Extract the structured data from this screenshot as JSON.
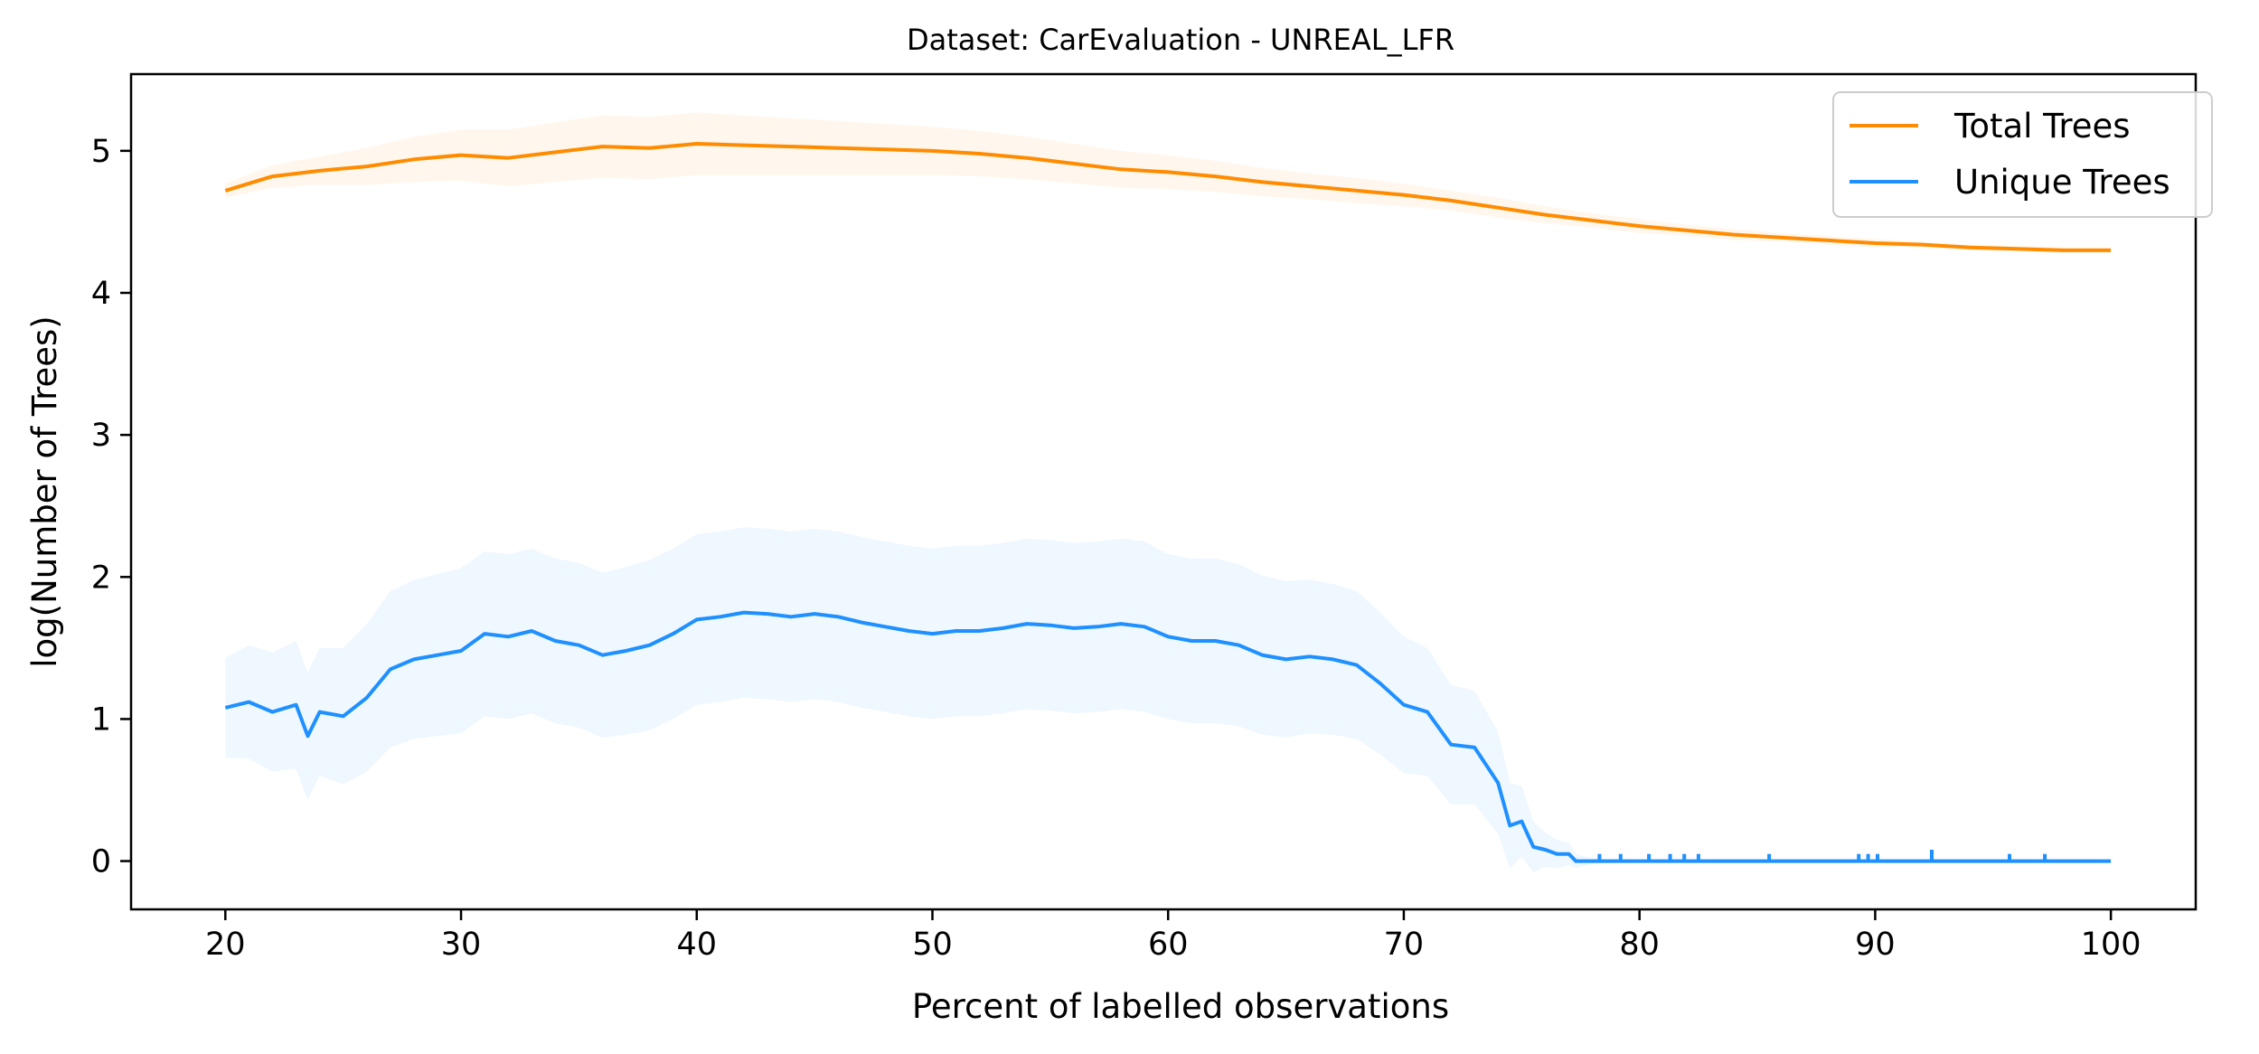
{
  "chart_data": {
    "type": "line",
    "title": "Dataset: CarEvaluation - UNREAL_LFR",
    "xlabel": "Percent of labelled observations",
    "ylabel": "log(Number of Trees)",
    "xlim": [
      16,
      103.6
    ],
    "ylim": [
      -0.34,
      5.54
    ],
    "xticks": [
      20,
      30,
      40,
      50,
      60,
      70,
      80,
      90,
      100
    ],
    "yticks": [
      0,
      1,
      2,
      3,
      4,
      5
    ],
    "legend_position": "upper-right",
    "grid": false,
    "series": [
      {
        "name": "Total Trees",
        "color": "#ff8c00",
        "x": [
          20,
          22,
          24,
          26,
          28,
          30,
          32,
          34,
          36,
          38,
          40,
          42,
          44,
          46,
          48,
          50,
          52,
          54,
          56,
          58,
          60,
          62,
          64,
          66,
          68,
          70,
          72,
          74,
          76,
          78,
          80,
          82,
          84,
          86,
          88,
          90,
          92,
          94,
          96,
          98,
          100
        ],
        "y": [
          4.72,
          4.82,
          4.86,
          4.89,
          4.94,
          4.97,
          4.95,
          4.99,
          5.03,
          5.02,
          5.05,
          5.04,
          5.03,
          5.02,
          5.01,
          5.0,
          4.98,
          4.95,
          4.91,
          4.87,
          4.85,
          4.82,
          4.78,
          4.75,
          4.72,
          4.69,
          4.65,
          4.6,
          4.55,
          4.51,
          4.47,
          4.44,
          4.41,
          4.39,
          4.37,
          4.35,
          4.34,
          4.32,
          4.31,
          4.3,
          4.3
        ],
        "band_width": [
          0.05,
          0.08,
          0.1,
          0.13,
          0.16,
          0.18,
          0.2,
          0.21,
          0.22,
          0.22,
          0.22,
          0.21,
          0.2,
          0.19,
          0.18,
          0.17,
          0.16,
          0.15,
          0.14,
          0.13,
          0.12,
          0.11,
          0.1,
          0.09,
          0.09,
          0.08,
          0.07,
          0.07,
          0.06,
          0.05,
          0.05,
          0.04,
          0.04,
          0.03,
          0.03,
          0.03,
          0.02,
          0.02,
          0.02,
          0.02,
          0.02
        ]
      },
      {
        "name": "Unique Trees",
        "color": "#1e90ff",
        "x": [
          20,
          21,
          22,
          23,
          23.5,
          24,
          25,
          26,
          27,
          28,
          29,
          30,
          31,
          32,
          33,
          34,
          35,
          36,
          37,
          38,
          39,
          40,
          41,
          42,
          43,
          44,
          45,
          46,
          47,
          48,
          49,
          50,
          51,
          52,
          53,
          54,
          55,
          56,
          57,
          58,
          59,
          60,
          61,
          62,
          63,
          64,
          65,
          66,
          67,
          68,
          69,
          70,
          71,
          72,
          73,
          74,
          74.5,
          75,
          75.5,
          76,
          76.5,
          77,
          77.3,
          78,
          80,
          82,
          84,
          86,
          88,
          90,
          92,
          94,
          96,
          98,
          100
        ],
        "y": [
          1.08,
          1.12,
          1.05,
          1.1,
          0.88,
          1.05,
          1.02,
          1.15,
          1.35,
          1.42,
          1.45,
          1.48,
          1.6,
          1.58,
          1.62,
          1.55,
          1.52,
          1.45,
          1.48,
          1.52,
          1.6,
          1.7,
          1.72,
          1.75,
          1.74,
          1.72,
          1.74,
          1.72,
          1.68,
          1.65,
          1.62,
          1.6,
          1.62,
          1.62,
          1.64,
          1.67,
          1.66,
          1.64,
          1.65,
          1.67,
          1.65,
          1.58,
          1.55,
          1.55,
          1.52,
          1.45,
          1.42,
          1.44,
          1.42,
          1.38,
          1.25,
          1.1,
          1.05,
          0.82,
          0.8,
          0.55,
          0.25,
          0.28,
          0.1,
          0.08,
          0.05,
          0.05,
          0.0,
          0.0,
          0.0,
          0.0,
          0.0,
          0.0,
          0.0,
          0.0,
          0.0,
          0.0,
          0.0,
          0.0,
          0.0
        ],
        "band_width": [
          0.35,
          0.4,
          0.42,
          0.45,
          0.45,
          0.45,
          0.48,
          0.52,
          0.55,
          0.56,
          0.57,
          0.58,
          0.58,
          0.58,
          0.58,
          0.58,
          0.58,
          0.58,
          0.59,
          0.6,
          0.6,
          0.6,
          0.6,
          0.6,
          0.6,
          0.6,
          0.6,
          0.6,
          0.6,
          0.6,
          0.6,
          0.6,
          0.6,
          0.6,
          0.6,
          0.6,
          0.6,
          0.6,
          0.6,
          0.6,
          0.6,
          0.58,
          0.58,
          0.58,
          0.57,
          0.56,
          0.55,
          0.54,
          0.53,
          0.52,
          0.5,
          0.48,
          0.45,
          0.42,
          0.4,
          0.36,
          0.3,
          0.25,
          0.18,
          0.12,
          0.1,
          0.08,
          0.05,
          0.02,
          0.0,
          0.0,
          0.0,
          0.0,
          0.0,
          0.0,
          0.0,
          0.0,
          0.0,
          0.0,
          0.0
        ],
        "spikes_x": [
          78.3,
          79.2,
          80.4,
          81.3,
          81.9,
          82.5,
          85.5,
          89.3,
          89.7,
          90.1,
          92.4,
          95.7,
          97.2
        ],
        "spikes_y": [
          0.05,
          0.05,
          0.05,
          0.05,
          0.05,
          0.05,
          0.05,
          0.05,
          0.05,
          0.05,
          0.08,
          0.05,
          0.05
        ]
      }
    ]
  }
}
